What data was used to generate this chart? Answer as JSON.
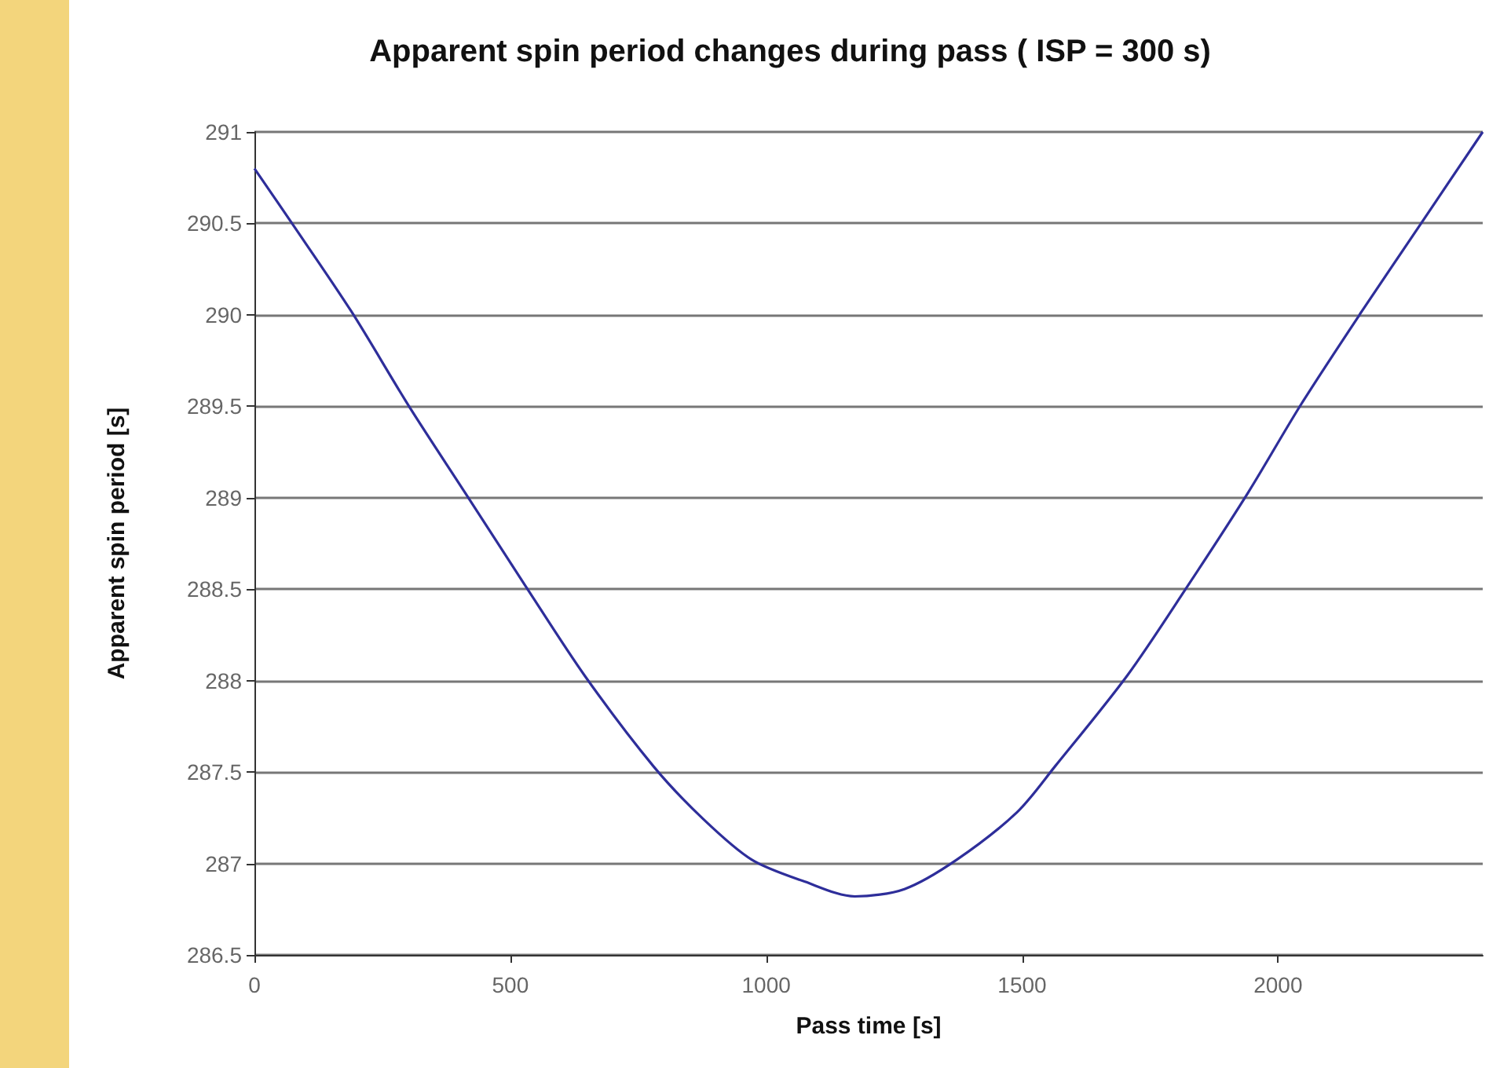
{
  "chart_data": {
    "type": "line",
    "title": "Apparent spin period changes during pass ( ISP = 300 s)",
    "xlabel": "Pass time [s]",
    "ylabel": "Apparent spin period [s]",
    "x": [
      0,
      71,
      189,
      302,
      411,
      529,
      647,
      780,
      878,
      972,
      1076,
      1173,
      1270,
      1372,
      1490,
      1564,
      1706,
      1824,
      1942,
      2045,
      2164,
      2282,
      2400
    ],
    "series": [
      {
        "color": "#2e2e9a",
        "values": [
          290.8,
          290.51,
          290.02,
          289.5,
          289.03,
          288.52,
          288.02,
          287.53,
          287.24,
          287.02,
          286.9,
          286.82,
          286.86,
          287.02,
          287.28,
          287.53,
          288.03,
          288.52,
          289.03,
          289.51,
          290.02,
          290.51,
          291
        ]
      }
    ],
    "xlim": [
      0,
      2400
    ],
    "xticks": [
      0,
      500,
      1000,
      1500,
      2000
    ],
    "ylim": [
      286.5,
      291
    ],
    "yticks": [
      286.5,
      287,
      287.5,
      288,
      288.5,
      289,
      289.5,
      290,
      290.5,
      291
    ],
    "grid": "y",
    "marker": "none",
    "line_style": "solid"
  }
}
